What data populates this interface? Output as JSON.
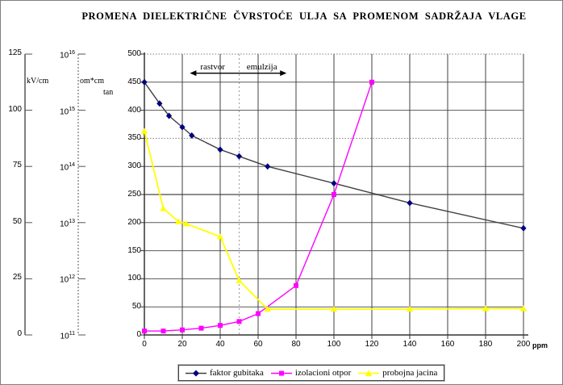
{
  "title": "PROMENA DIELEKTRIČNE ČVRSTOĆE ULJA SA PROMENOM SADRŽAJA VLAGE",
  "chart_data": {
    "type": "line",
    "title": "PROMENA DIELEKTRIČNE ČVRSTOĆE ULJA SA PROMENOM SADRŽAJA VLAGE",
    "x_axis": {
      "label": "ppm",
      "min": 0,
      "max": 200,
      "tick_step": 20
    },
    "y_axis_main": {
      "label": "tan",
      "min": 0,
      "max": 500,
      "tick_step": 50
    },
    "y_axis_breakdown": {
      "label": "kV/cm",
      "min": 0,
      "max": 125,
      "ticks": [
        125,
        100,
        75,
        50,
        25,
        0
      ]
    },
    "y_axis_resistivity": {
      "label": "om*cm",
      "ticks": [
        "10^16",
        "10^15",
        "10^14",
        "10^13",
        "10^12",
        "10^11"
      ]
    },
    "grid": "on",
    "legend_position": "bottom",
    "annotations": {
      "divider_ppm": 50,
      "arrow": {
        "from_ppm": 24,
        "to_ppm": 75,
        "y_value": 466
      },
      "regions": [
        {
          "label": "rastvor",
          "center_ppm": 36
        },
        {
          "label": "emulzija",
          "center_ppm": 62
        }
      ]
    },
    "series": [
      {
        "name": "faktor gubitaka",
        "marker": "diamond",
        "marker_color": "#000080",
        "line_color": "#404040",
        "points": [
          [
            0,
            450
          ],
          [
            8,
            412
          ],
          [
            13,
            390
          ],
          [
            20,
            370
          ],
          [
            25,
            355
          ],
          [
            40,
            330
          ],
          [
            50,
            318
          ],
          [
            65,
            300
          ],
          [
            100,
            270
          ],
          [
            140,
            235
          ],
          [
            200,
            190
          ]
        ]
      },
      {
        "name": "izolacioni otpor",
        "marker": "square",
        "marker_color": "#ff00ff",
        "line_color": "#ff00ff",
        "points": [
          [
            0,
            7
          ],
          [
            10,
            7
          ],
          [
            20,
            9
          ],
          [
            30,
            12
          ],
          [
            40,
            17
          ],
          [
            50,
            24
          ],
          [
            60,
            38
          ],
          [
            80,
            88
          ],
          [
            100,
            250
          ],
          [
            120,
            450
          ]
        ]
      },
      {
        "name": "probojna jacina",
        "marker": "triangle",
        "marker_color": "#ffff00",
        "line_color": "#ffff00",
        "points": [
          [
            0,
            363
          ],
          [
            10,
            225
          ],
          [
            18,
            202
          ],
          [
            22,
            198
          ],
          [
            40,
            175
          ],
          [
            50,
            97
          ],
          [
            65,
            46
          ],
          [
            100,
            46
          ],
          [
            140,
            46
          ],
          [
            180,
            47
          ],
          [
            200,
            47
          ]
        ]
      }
    ]
  }
}
